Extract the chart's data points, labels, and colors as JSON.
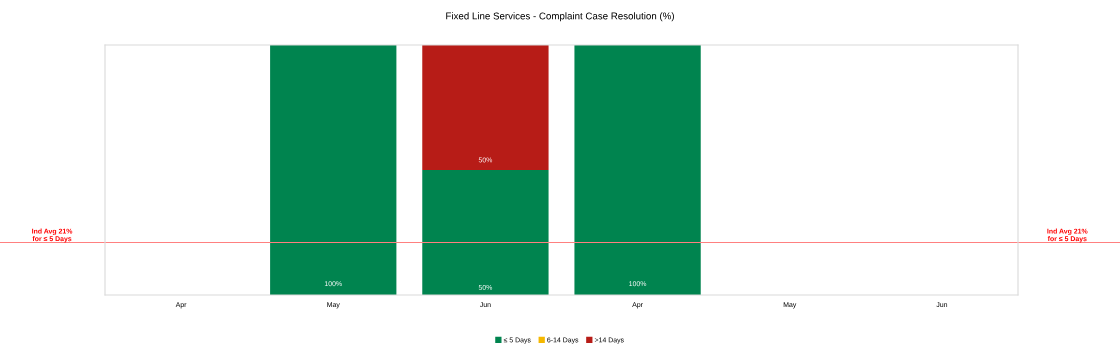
{
  "chart_data": {
    "type": "bar",
    "title": "Fixed Line Services - Complaint Case Resolution (%)",
    "categories": [
      "Apr",
      "May",
      "Jun",
      "Apr",
      "May",
      "Jun"
    ],
    "stacked": true,
    "ylim": [
      0,
      100
    ],
    "tick_labels": "x",
    "grid": false,
    "legend": "bottom",
    "series": [
      {
        "name": "≤ 5 Days",
        "color": "#00844f",
        "values": [
          null,
          100,
          50,
          100,
          null,
          null
        ],
        "value_labels": [
          null,
          "100%",
          "50%",
          "100%",
          null,
          null
        ]
      },
      {
        "name": "6-14 Days",
        "color": "#f5b800",
        "values": [
          null,
          null,
          null,
          null,
          null,
          null
        ]
      },
      {
        "name": ">14 Days",
        "color": "#b71c17",
        "values": [
          null,
          null,
          50,
          null,
          null,
          null
        ],
        "value_labels": [
          null,
          null,
          "50%",
          null,
          null,
          null
        ]
      }
    ],
    "ref_lines": [
      {
        "axis": "y",
        "value": 21,
        "label": "Ind Avg 21%\nfor ≤ 5 Days",
        "color": "#ff8080"
      }
    ]
  }
}
